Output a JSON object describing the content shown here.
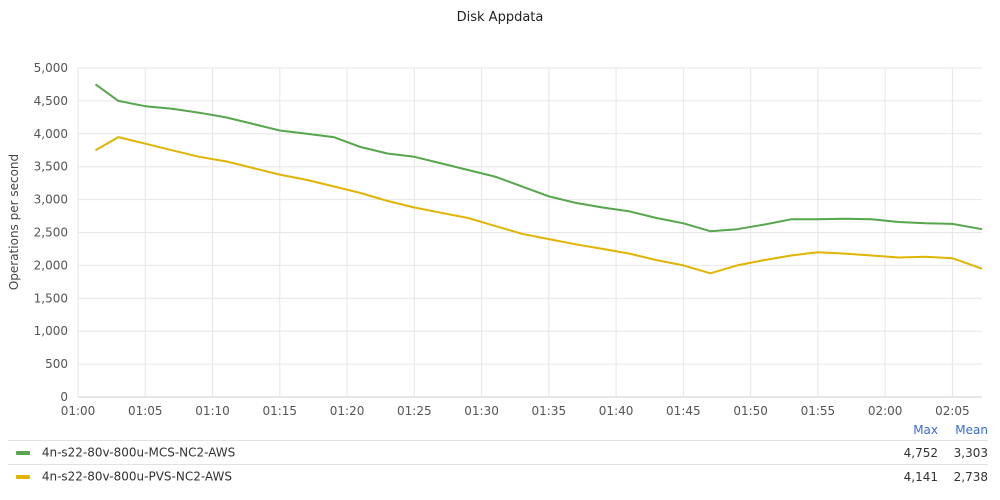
{
  "chart_data": {
    "type": "line",
    "title": "Disk Appdata",
    "ylabel": "Operations per second",
    "xlabel": "",
    "x_tick_labels": [
      "01:00",
      "01:05",
      "01:10",
      "01:15",
      "01:20",
      "01:25",
      "01:30",
      "01:35",
      "01:40",
      "01:45",
      "01:50",
      "01:55",
      "02:00",
      "02:05"
    ],
    "y_tick_labels": [
      "0",
      "500",
      "1,000",
      "1,500",
      "2,000",
      "2,500",
      "3,000",
      "3,500",
      "4,000",
      "4,500",
      "5,000"
    ],
    "ylim": [
      0,
      5000
    ],
    "xlim_minutes": [
      0,
      67.2
    ],
    "grid": true,
    "legend_placement": "bottom",
    "legend_columns": [
      "Max",
      "Mean"
    ],
    "series": [
      {
        "name": "4n-s22-80v-800u-MCS-NC2-AWS",
        "color": "#56a64b",
        "max": "4,752",
        "mean": "3,303",
        "x": [
          1.3,
          3,
          5,
          7,
          9,
          11,
          13,
          15,
          17,
          19,
          21,
          23,
          25,
          27,
          29,
          31,
          33,
          35,
          37,
          39,
          41,
          43,
          45,
          47,
          49,
          51,
          53,
          55,
          57,
          59,
          61,
          63,
          65,
          67.2
        ],
        "values": [
          4752,
          4500,
          4420,
          4380,
          4320,
          4250,
          4150,
          4050,
          4000,
          3950,
          3800,
          3700,
          3650,
          3550,
          3450,
          3350,
          3200,
          3050,
          2950,
          2880,
          2820,
          2720,
          2640,
          2520,
          2550,
          2620,
          2700,
          2700,
          2710,
          2700,
          2660,
          2640,
          2630,
          2550
        ]
      },
      {
        "name": "4n-s22-80v-800u-PVS-NC2-AWS",
        "color": "#e0b400",
        "max": "4,141",
        "mean": "2,738",
        "x": [
          1.3,
          3,
          5,
          7,
          9,
          11,
          13,
          15,
          17,
          19,
          21,
          23,
          25,
          27,
          29,
          31,
          33,
          35,
          37,
          39,
          41,
          43,
          45,
          47,
          49,
          51,
          53,
          55,
          57,
          59,
          61,
          63,
          65,
          67.2
        ],
        "values": [
          3750,
          3950,
          3850,
          3750,
          3650,
          3580,
          3480,
          3380,
          3300,
          3200,
          3100,
          2980,
          2880,
          2800,
          2720,
          2600,
          2480,
          2400,
          2320,
          2250,
          2180,
          2080,
          2000,
          1880,
          2000,
          2080,
          2150,
          2200,
          2180,
          2150,
          2120,
          2130,
          2110,
          1950
        ]
      }
    ]
  }
}
